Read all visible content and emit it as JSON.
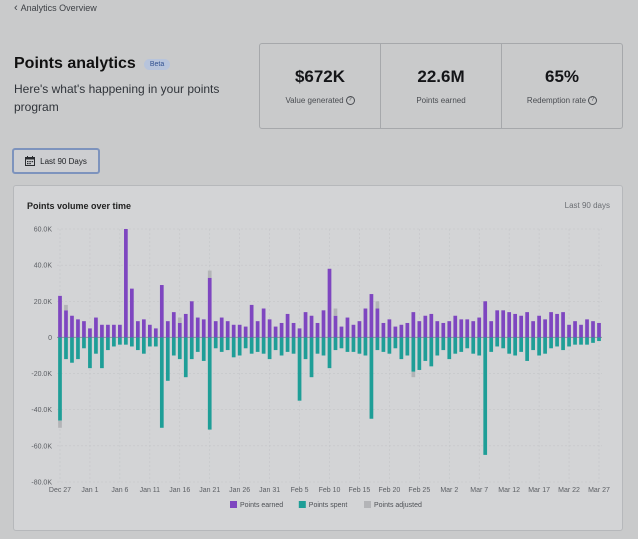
{
  "nav": {
    "back_label": "Analytics Overview"
  },
  "header": {
    "title": "Points analytics",
    "badge": "Beta",
    "subtitle": "Here's what's happening in your points program"
  },
  "stats": [
    {
      "value": "$672K",
      "label": "Value generated",
      "info": true
    },
    {
      "value": "22.6M",
      "label": "Points earned",
      "info": false
    },
    {
      "value": "65%",
      "label": "Redemption rate",
      "info": true
    }
  ],
  "filter": {
    "label": "Last 90 Days"
  },
  "chart": {
    "title": "Points volume over time",
    "range_label": "Last 90 days"
  },
  "colors": {
    "earned": "#7e46c0",
    "spent": "#1e9e97",
    "adjusted": "#b3b4b7"
  },
  "chart_data": {
    "type": "bar",
    "stacked": true,
    "ylim": [
      -80000,
      60000
    ],
    "y_ticks": [
      60000,
      40000,
      20000,
      0,
      -20000,
      -40000,
      -60000,
      -80000
    ],
    "y_tick_labels": [
      "60.0K",
      "40.0K",
      "20.0K",
      "0",
      "-20.0K",
      "-40.0K",
      "-60.0K",
      "-80.0K"
    ],
    "x_tick_labels": [
      "Dec 27",
      "Jan 1",
      "Jan 6",
      "Jan 11",
      "Jan 16",
      "Jan 21",
      "Jan 26",
      "Jan 31",
      "Feb 5",
      "Feb 10",
      "Feb 15",
      "Feb 20",
      "Feb 25",
      "Mar 2",
      "Mar 7",
      "Mar 12",
      "Mar 17",
      "Mar 22",
      "Mar 27"
    ],
    "grid": true,
    "legend_position": "bottom",
    "series": [
      {
        "name": "Points earned",
        "values": [
          23000,
          15000,
          12000,
          10000,
          9000,
          5000,
          11000,
          7000,
          7000,
          7000,
          7000,
          60000,
          27000,
          9000,
          10000,
          7000,
          5000,
          29000,
          9000,
          14000,
          8000,
          13000,
          20000,
          11000,
          10000,
          33000,
          9000,
          11000,
          9000,
          7000,
          7000,
          6000,
          18000,
          9000,
          16000,
          10000,
          6000,
          8000,
          13000,
          8000,
          5000,
          14000,
          12000,
          8000,
          15000,
          38000,
          12000,
          6000,
          11000,
          7000,
          9000,
          16000,
          24000,
          16000,
          8000,
          10000,
          6000,
          7000,
          8000,
          14000,
          9000,
          12000,
          13000,
          9000,
          8000,
          9000,
          12000,
          10000,
          10000,
          9000,
          11000,
          20000,
          9000,
          15000,
          15000,
          14000,
          13000,
          12000,
          14000,
          9000,
          12000,
          10000,
          14000,
          13000,
          14000,
          7000,
          9000,
          7000,
          10000,
          9000,
          8000
        ]
      },
      {
        "name": "Points spent",
        "values": [
          -46000,
          -12000,
          -14000,
          -12000,
          -6000,
          -17000,
          -9000,
          -17000,
          -7000,
          -5000,
          -4000,
          -4000,
          -5000,
          -7000,
          -9000,
          -5000,
          -5000,
          -50000,
          -24000,
          -10000,
          -12000,
          -22000,
          -12000,
          -8000,
          -13000,
          -51000,
          -6000,
          -8000,
          -7000,
          -11000,
          -10000,
          -6000,
          -9000,
          -8000,
          -9000,
          -12000,
          -7000,
          -10000,
          -8000,
          -9000,
          -35000,
          -12000,
          -22000,
          -9000,
          -10000,
          -17000,
          -7000,
          -6000,
          -8000,
          -8000,
          -9000,
          -10000,
          -45000,
          -7000,
          -8000,
          -9000,
          -6000,
          -12000,
          -10000,
          -19000,
          -18000,
          -13000,
          -16000,
          -10000,
          -7000,
          -12000,
          -9000,
          -8000,
          -6000,
          -9000,
          -10000,
          -65000,
          -8000,
          -5000,
          -6000,
          -9000,
          -10000,
          -8000,
          -13000,
          -7000,
          -10000,
          -9000,
          -6000,
          -5000,
          -7000,
          -5000,
          -4000,
          -4000,
          -4000,
          -3000,
          -2000
        ]
      },
      {
        "name": "Points adjusted",
        "values": [
          0,
          3000,
          0,
          0,
          0,
          0,
          0,
          0,
          0,
          0,
          0,
          0,
          0,
          0,
          0,
          0,
          0,
          0,
          0,
          0,
          3000,
          0,
          0,
          0,
          0,
          4000,
          0,
          0,
          0,
          0,
          0,
          0,
          0,
          0,
          0,
          0,
          0,
          0,
          0,
          0,
          0,
          0,
          0,
          0,
          0,
          0,
          4000,
          0,
          0,
          0,
          0,
          0,
          0,
          4000,
          0,
          0,
          0,
          0,
          0,
          0,
          0,
          0,
          0,
          0,
          0,
          0,
          0,
          0,
          0,
          0,
          0,
          0,
          0,
          0,
          0,
          0,
          0,
          0,
          0,
          0,
          0,
          0,
          0,
          0,
          0,
          0,
          0,
          0,
          0,
          0,
          0
        ]
      }
    ],
    "series_spent_adjusted_below": [
      -4000,
      0,
      0,
      0,
      0,
      0,
      0,
      0,
      0,
      0,
      0,
      0,
      0,
      0,
      0,
      0,
      0,
      0,
      0,
      0,
      0,
      0,
      0,
      0,
      0,
      0,
      0,
      0,
      0,
      0,
      0,
      0,
      0,
      0,
      0,
      0,
      0,
      0,
      0,
      0,
      0,
      0,
      0,
      0,
      0,
      0,
      0,
      0,
      0,
      0,
      0,
      0,
      0,
      0,
      0,
      0,
      0,
      0,
      0,
      -3000,
      0,
      0,
      0,
      0,
      0,
      0,
      0,
      0,
      0,
      0,
      0,
      0,
      0,
      0,
      0,
      0,
      0,
      0,
      0,
      0,
      0,
      0,
      0,
      0,
      0,
      0,
      0,
      0,
      0,
      0,
      0
    ]
  }
}
